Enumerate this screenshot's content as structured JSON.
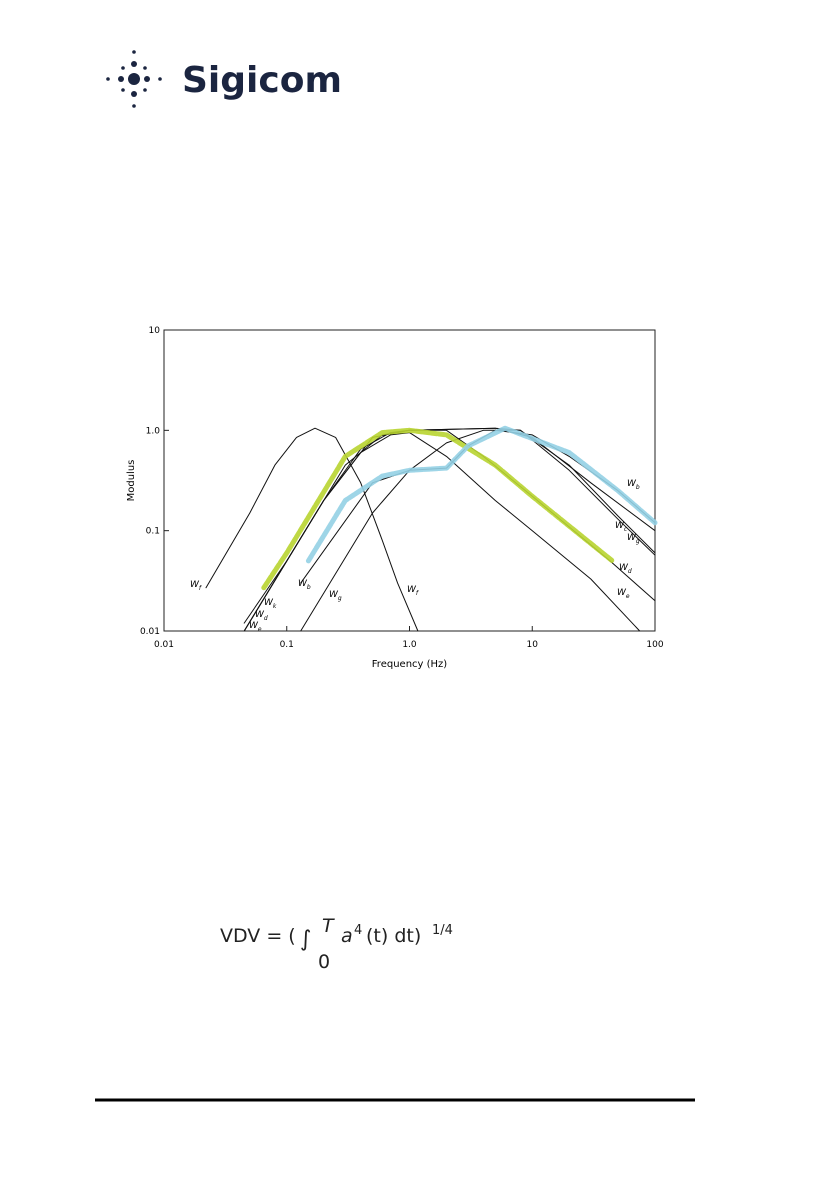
{
  "header": {
    "logo": "Sigicom"
  },
  "chart_data": {
    "type": "line",
    "xlabel": "Frequency (Hz)",
    "ylabel": "Modulus",
    "xscale": "log",
    "yscale": "log",
    "grid": false,
    "xlim": [
      0.01,
      100
    ],
    "ylim": [
      0.01,
      10
    ],
    "xticks": [
      0.01,
      0.1,
      {
        "value": 1,
        "label": "1.0"
      },
      10,
      100
    ],
    "yticks": [
      0.01,
      0.1,
      {
        "value": 1,
        "label": "1.0"
      },
      10
    ],
    "series": [
      {
        "name": "Wf",
        "color": "#111111",
        "x": [
          0.022,
          0.05,
          0.08,
          0.12,
          0.17,
          0.25,
          0.4,
          0.6,
          0.8,
          1.17
        ],
        "values": [
          0.027,
          0.15,
          0.45,
          0.85,
          1.05,
          0.85,
          0.3,
          0.08,
          0.03,
          0.01
        ]
      },
      {
        "name": "Wk",
        "color": "#111111",
        "x": [
          0.045,
          0.1,
          0.3,
          0.6,
          1,
          5,
          10,
          30,
          100
        ],
        "values": [
          0.012,
          0.05,
          0.45,
          0.9,
          1.0,
          1.05,
          0.85,
          0.3,
          0.1
        ]
      },
      {
        "name": "Wb",
        "color": "#111111",
        "x": [
          0.13,
          0.5,
          1,
          2,
          3,
          5,
          10,
          20,
          50,
          100
        ],
        "values": [
          0.03,
          0.3,
          0.4,
          0.42,
          0.7,
          1.0,
          0.9,
          0.55,
          0.25,
          0.12
        ]
      },
      {
        "name": "Wc",
        "color": "#111111",
        "x": [
          0.045,
          0.2,
          0.5,
          1,
          5,
          8,
          20,
          50,
          100
        ],
        "values": [
          0.01,
          0.2,
          0.85,
          1.0,
          1.05,
          1.0,
          0.45,
          0.14,
          0.06
        ]
      },
      {
        "name": "Wg",
        "color": "#111111",
        "x": [
          0.13,
          0.5,
          1,
          2,
          4,
          8,
          20,
          50,
          100
        ],
        "values": [
          0.01,
          0.15,
          0.4,
          0.75,
          1.0,
          1.0,
          0.4,
          0.13,
          0.057
        ]
      },
      {
        "name": "Wd",
        "color": "#111111",
        "x": [
          0.045,
          0.1,
          0.2,
          0.4,
          0.7,
          1,
          2,
          4,
          10,
          43,
          100
        ],
        "values": [
          0.01,
          0.05,
          0.2,
          0.65,
          0.95,
          1.0,
          1.0,
          0.55,
          0.22,
          0.05,
          0.02
        ]
      },
      {
        "name": "We",
        "color": "#111111",
        "x": [
          0.045,
          0.1,
          0.2,
          0.4,
          0.7,
          1,
          2,
          5,
          10,
          30,
          75
        ],
        "values": [
          0.01,
          0.05,
          0.2,
          0.6,
          0.9,
          0.95,
          0.55,
          0.2,
          0.1,
          0.033,
          0.01
        ]
      },
      {
        "color": "#b8d430",
        "x": [
          0.065,
          0.1,
          0.3,
          0.6,
          1,
          2,
          5,
          10,
          45
        ],
        "values": [
          0.027,
          0.06,
          0.55,
          0.95,
          1.0,
          0.9,
          0.45,
          0.22,
          0.05
        ]
      },
      {
        "color": "#93d0e4",
        "x": [
          0.15,
          0.3,
          0.6,
          1,
          2,
          3,
          6,
          20,
          50,
          100
        ],
        "values": [
          0.05,
          0.2,
          0.35,
          0.4,
          0.42,
          0.7,
          1.05,
          0.6,
          0.25,
          0.12
        ]
      }
    ],
    "annotations": [
      "Wf",
      "Wd",
      "We",
      "Wb",
      "Wg"
    ]
  },
  "formula": {
    "lhs": "VDV = (",
    "integral": "∫",
    "upper": "T",
    "lower": "0",
    "body": "a",
    "power": "4",
    "arg": "(t) dt)",
    "exponent": "1/4"
  }
}
